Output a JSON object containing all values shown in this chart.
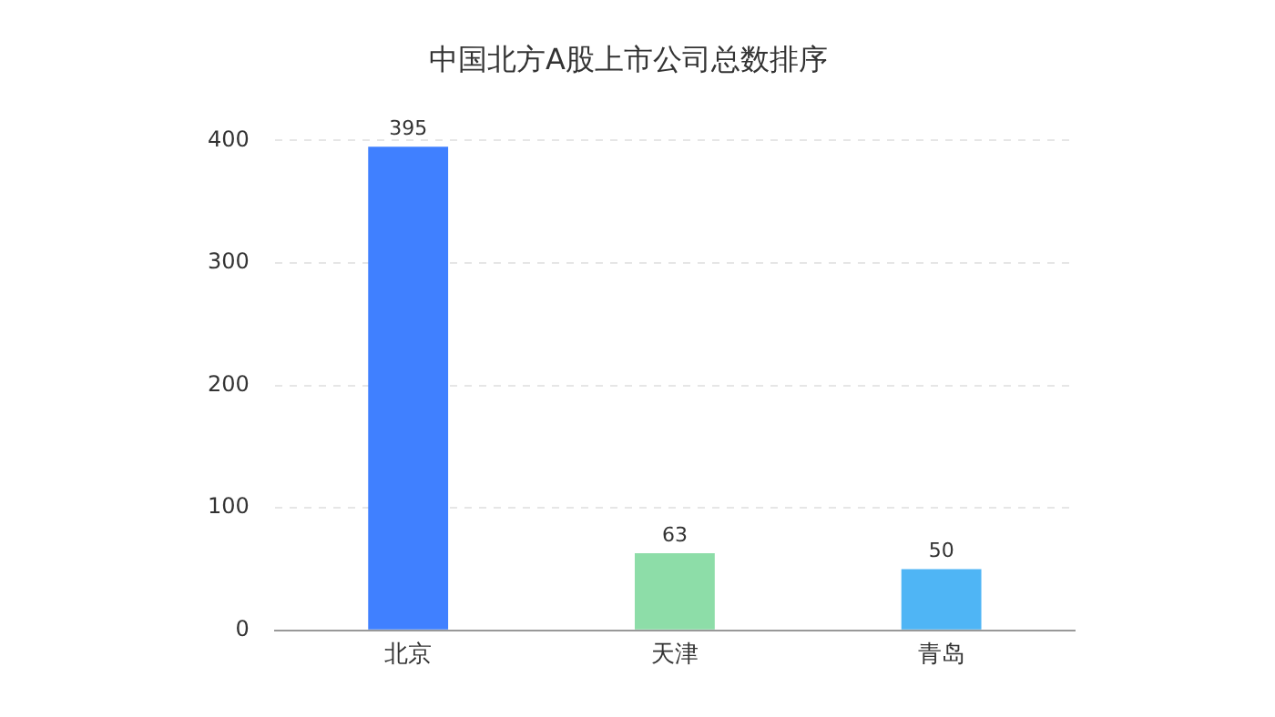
{
  "chart_data": {
    "type": "bar",
    "title": "中国北方A股上市公司总数排序",
    "categories": [
      "北京",
      "天津",
      "青岛"
    ],
    "values": [
      395,
      63,
      50
    ],
    "colors": [
      "#4080ff",
      "#8ddda8",
      "#4fb5f5"
    ],
    "ylim": [
      0,
      400
    ],
    "yticks": [
      0,
      100,
      200,
      300,
      400
    ],
    "grid": "y",
    "data_labels": true
  }
}
